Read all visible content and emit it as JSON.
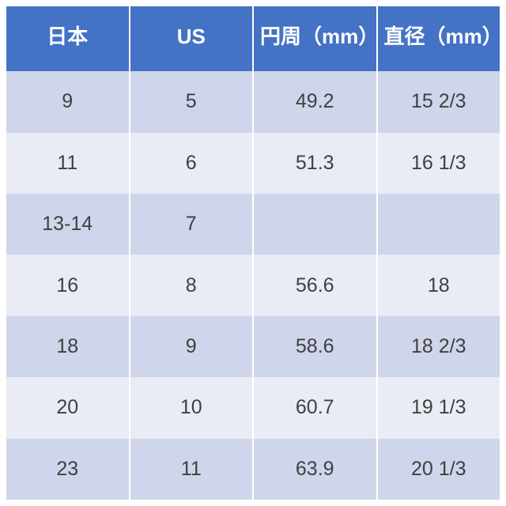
{
  "table": {
    "type": "table",
    "header_bg": "#4472c4",
    "header_text_color": "#ffffff",
    "row_odd_bg": "#cfd5ea",
    "row_even_bg": "#e9ebf5",
    "cell_text_color": "#404040",
    "divider_color": "#ffffff",
    "header_fontsize": 26,
    "header_fontweight": "bold",
    "cell_fontsize": 25,
    "columns": [
      {
        "label": "日本",
        "align": "center"
      },
      {
        "label": "US",
        "align": "center"
      },
      {
        "label": "円周（mm）",
        "align": "center"
      },
      {
        "label": "直径（mm）",
        "align": "center"
      }
    ],
    "rows": [
      [
        "9",
        "5",
        "49.2",
        "15 2/3"
      ],
      [
        "11",
        "6",
        "51.3",
        "16 1/3"
      ],
      [
        "13-14",
        "7",
        "",
        ""
      ],
      [
        "16",
        "8",
        "56.6",
        "18"
      ],
      [
        "18",
        "9",
        "58.6",
        "18 2/3"
      ],
      [
        "20",
        "10",
        "60.7",
        "19 1/3"
      ],
      [
        "23",
        "11",
        "63.9",
        "20 1/3"
      ]
    ]
  }
}
